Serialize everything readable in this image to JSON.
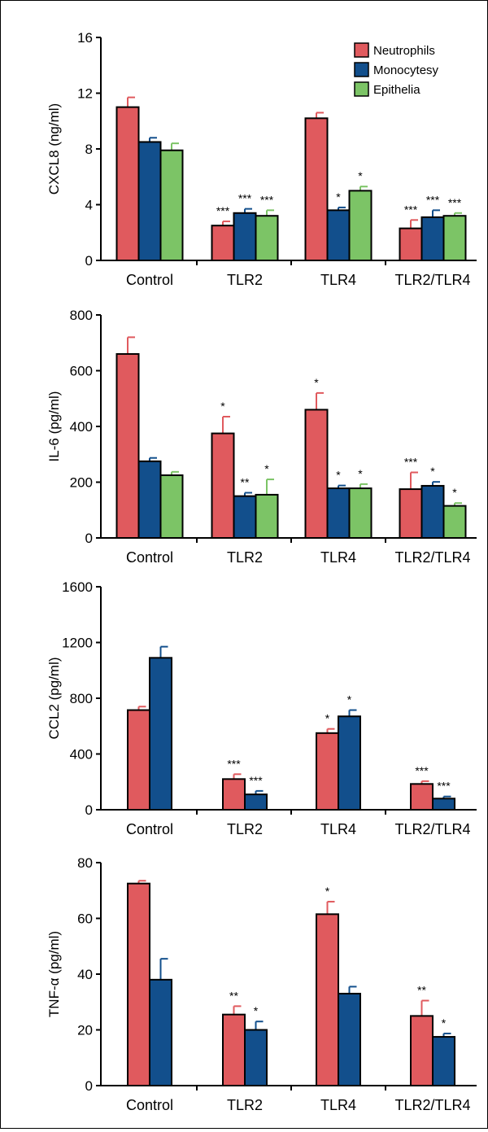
{
  "legend": [
    {
      "label": "Neutrophils",
      "color": "#e05a5e"
    },
    {
      "label": "Monocytesy",
      "color": "#124f8c"
    },
    {
      "label": "Epithelia",
      "color": "#7cc466"
    }
  ],
  "chart_data": [
    {
      "type": "bar",
      "ylabel": "CXCL8 (ng/ml)",
      "ylim": [
        0,
        16
      ],
      "yticks": [
        0,
        4,
        8,
        12,
        16
      ],
      "categories": [
        "Control",
        "TLR2",
        "TLR4",
        "TLR2/TLR4"
      ],
      "legend_position": "top-right",
      "series": [
        {
          "name": "Neutrophils",
          "values": [
            11.0,
            2.5,
            10.2,
            2.3
          ],
          "errors": [
            0.7,
            0.3,
            0.4,
            0.6
          ],
          "sig": [
            "",
            "***",
            "",
            "***"
          ]
        },
        {
          "name": "Monocytesy",
          "values": [
            8.5,
            3.4,
            3.6,
            3.1
          ],
          "errors": [
            0.3,
            0.3,
            0.2,
            0.5
          ],
          "sig": [
            "",
            "***",
            "*",
            "***"
          ]
        },
        {
          "name": "Epithelia",
          "values": [
            7.9,
            3.2,
            5.0,
            3.2
          ],
          "errors": [
            0.5,
            0.4,
            0.3,
            0.2
          ],
          "sig": [
            "",
            "***",
            "*",
            "***"
          ]
        }
      ]
    },
    {
      "type": "bar",
      "ylabel": "IL-6 (pg/ml)",
      "ylim": [
        0,
        800
      ],
      "yticks": [
        0,
        200,
        400,
        600,
        800
      ],
      "categories": [
        "Control",
        "TLR2",
        "TLR4",
        "TLR2/TLR4"
      ],
      "series": [
        {
          "name": "Neutrophils",
          "values": [
            660,
            375,
            460,
            175
          ],
          "errors": [
            60,
            60,
            60,
            60
          ],
          "sig": [
            "",
            "*",
            "*",
            "***"
          ]
        },
        {
          "name": "Monocytesy",
          "values": [
            275,
            150,
            178,
            187
          ],
          "errors": [
            12,
            12,
            10,
            14
          ],
          "sig": [
            "",
            "**",
            "*",
            "*"
          ]
        },
        {
          "name": "Epithelia",
          "values": [
            225,
            155,
            178,
            115
          ],
          "errors": [
            12,
            55,
            15,
            10
          ],
          "sig": [
            "",
            "*",
            "*",
            "*"
          ]
        }
      ]
    },
    {
      "type": "bar",
      "ylabel": "CCL2 (pg/ml)",
      "ylim": [
        0,
        1600
      ],
      "yticks": [
        0,
        400,
        800,
        1200,
        1600
      ],
      "categories": [
        "Control",
        "TLR2",
        "TLR4",
        "TLR2/TLR4"
      ],
      "series": [
        {
          "name": "Neutrophils",
          "values": [
            715,
            220,
            550,
            185
          ],
          "errors": [
            25,
            35,
            30,
            20
          ],
          "sig": [
            "",
            "***",
            "*",
            "***"
          ]
        },
        {
          "name": "Monocytesy",
          "values": [
            1090,
            110,
            670,
            80
          ],
          "errors": [
            80,
            25,
            45,
            15
          ],
          "sig": [
            "",
            "***",
            "*",
            "***"
          ]
        }
      ]
    },
    {
      "type": "bar",
      "ylabel": "TNF-α (pg/ml)",
      "ylim": [
        0,
        80
      ],
      "yticks": [
        0,
        20,
        40,
        60,
        80
      ],
      "categories": [
        "Control",
        "TLR2",
        "TLR4",
        "TLR2/TLR4"
      ],
      "series": [
        {
          "name": "Neutrophils",
          "values": [
            72.5,
            25.5,
            61.5,
            25
          ],
          "errors": [
            1,
            3,
            4.5,
            5.5
          ],
          "sig": [
            "",
            "**",
            "*",
            "**"
          ]
        },
        {
          "name": "Monocytesy",
          "values": [
            38,
            20,
            33,
            17.5
          ],
          "errors": [
            7.5,
            3,
            2.5,
            1.2
          ],
          "sig": [
            "",
            "*",
            "",
            "*"
          ]
        }
      ]
    }
  ]
}
